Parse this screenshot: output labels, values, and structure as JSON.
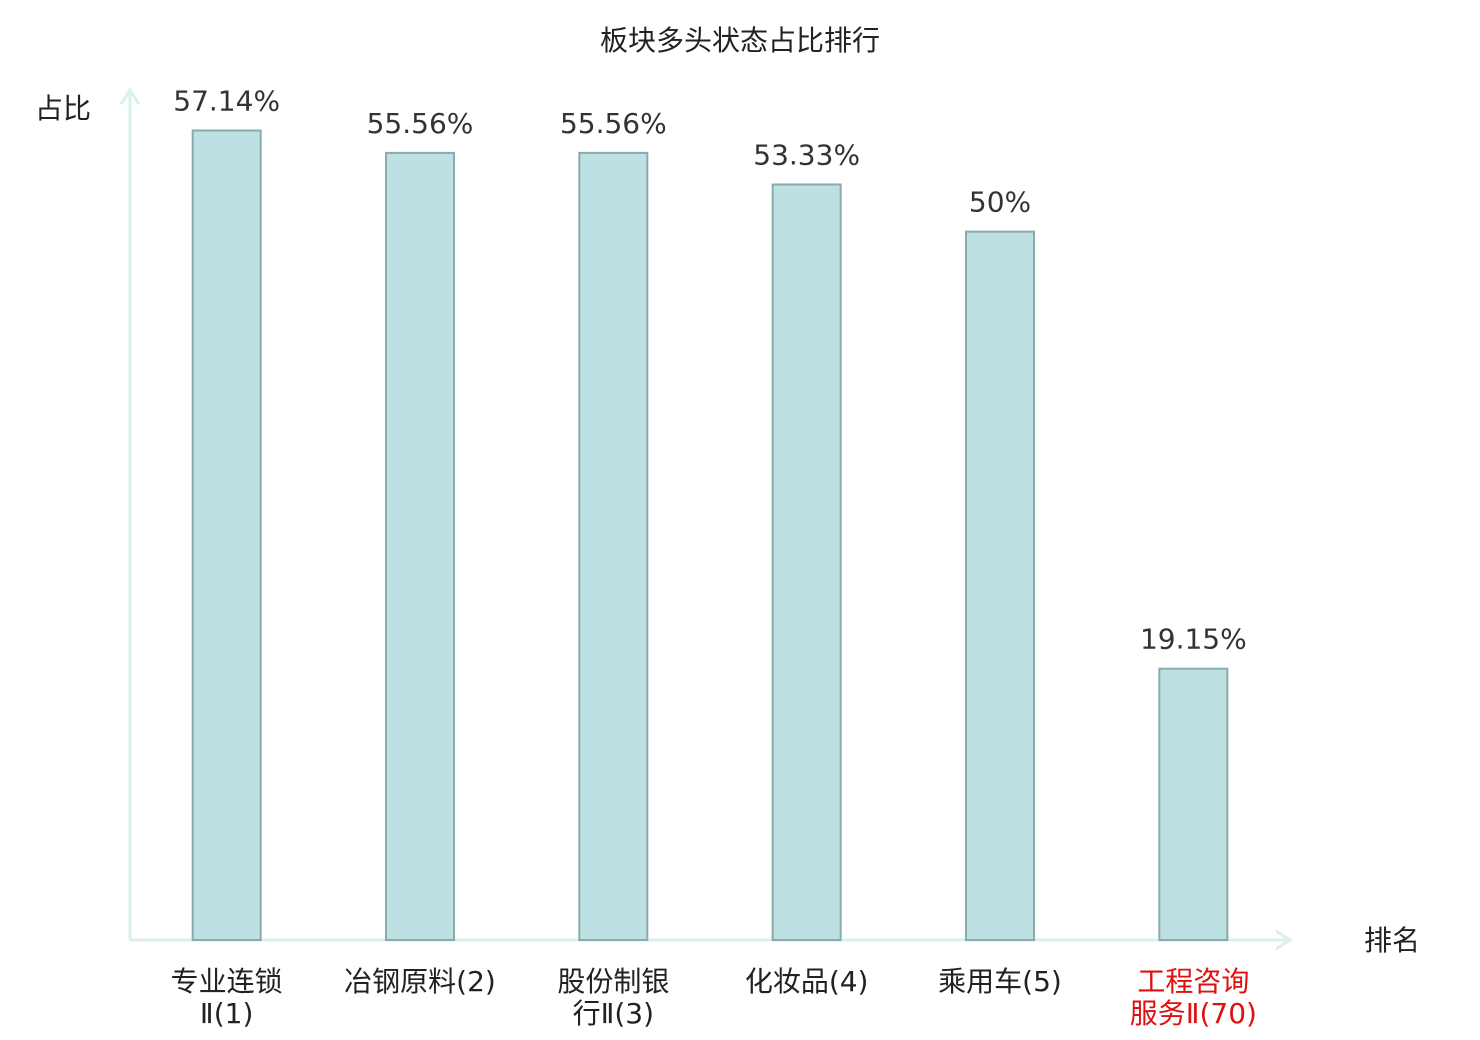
{
  "chart_data": {
    "type": "bar",
    "title": "板块多头状态占比排行",
    "y_label": "占比",
    "x_label": "排名",
    "categories": [
      "专业连锁\nⅡ(1)",
      "冶钢原料(2)",
      "股份制银\n行Ⅱ(3)",
      "化妆品(4)",
      "乘用车(5)",
      "工程咨询\n服务Ⅱ(70)"
    ],
    "values": [
      57.14,
      55.56,
      55.56,
      53.33,
      50,
      19.15
    ],
    "value_labels": [
      "57.14%",
      "55.56%",
      "55.56%",
      "53.33%",
      "50%",
      "19.15%"
    ],
    "color": "#bde0e3",
    "edge_color": "#8aabab",
    "axis_color": "#d9f0ec",
    "label_colors": [
      "#222222",
      "#222222",
      "#222222",
      "#222222",
      "#222222",
      "#e01010"
    ],
    "ylim": [
      0,
      60
    ]
  }
}
